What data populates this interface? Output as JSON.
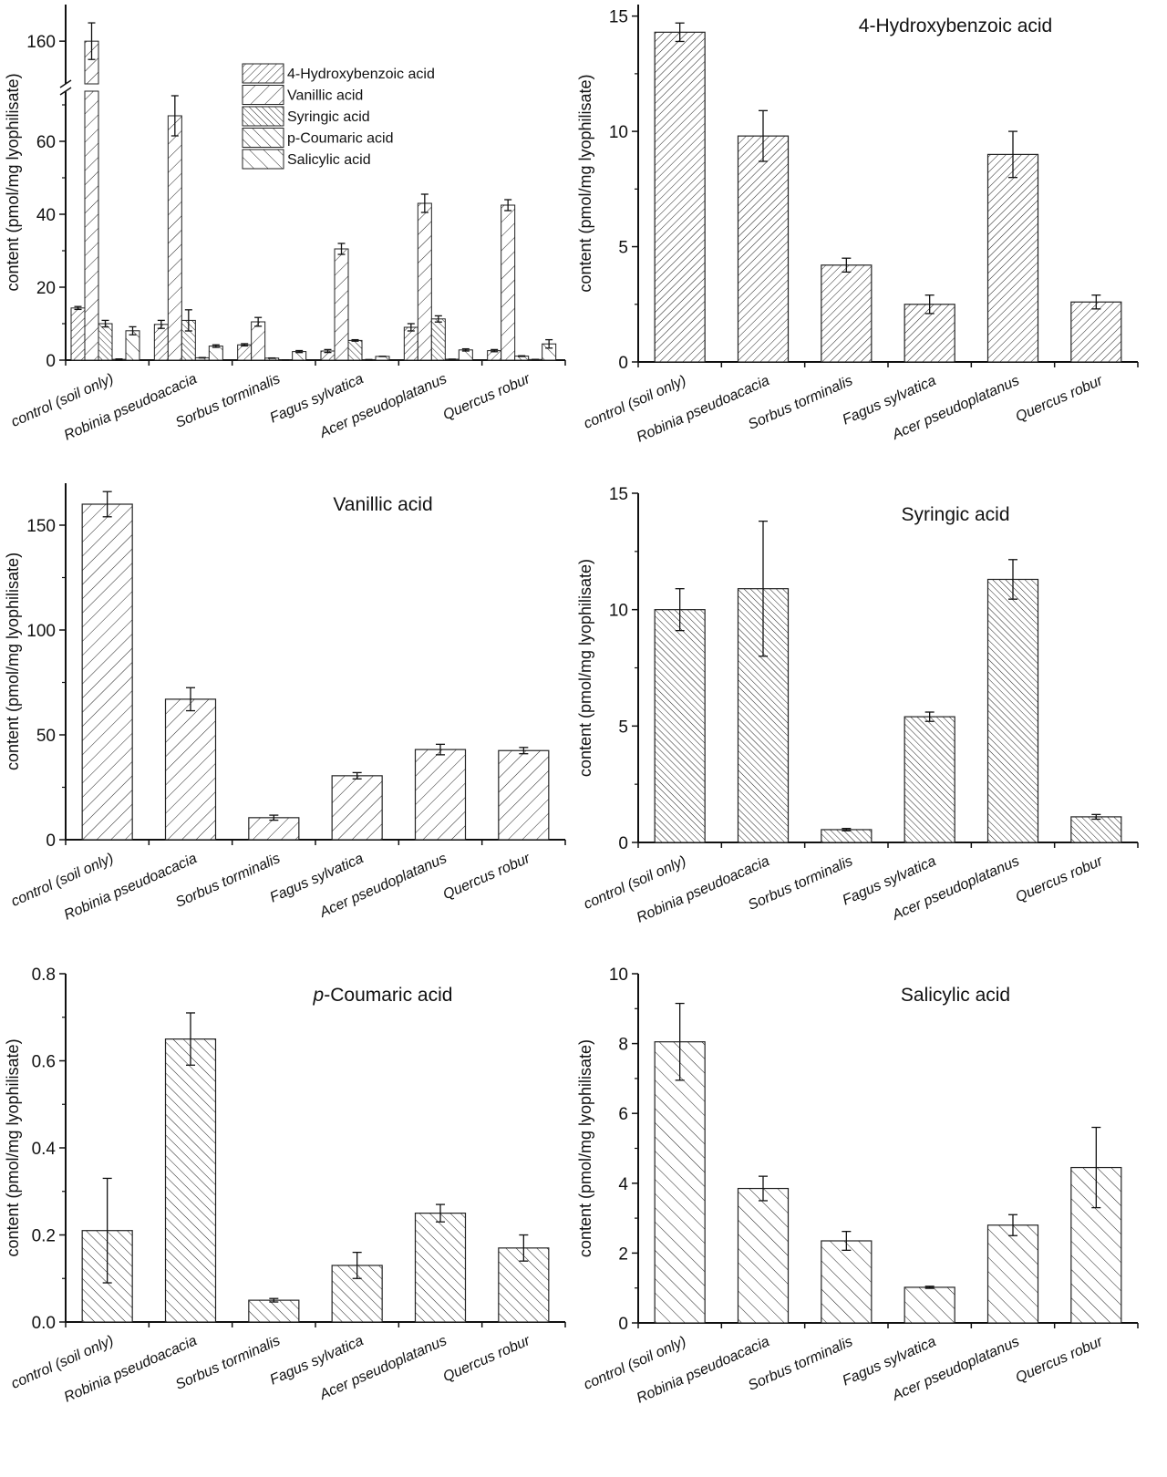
{
  "chart_data": [
    {
      "type": "bar",
      "title": "",
      "ylabel": "content (pmol/mg lyophilisate)",
      "categories": [
        "control (soil only)",
        "Robinia pseudoacacia",
        "Sorbus torminalis",
        "Fagus sylvatica",
        "Acer pseudoplatanus",
        "Quercus robur"
      ],
      "y_axis_break": true,
      "ylim_lower": [
        0,
        74
      ],
      "ylim_upper": [
        146,
        172
      ],
      "yticks": [
        "0",
        "20",
        "40",
        "60",
        "160"
      ],
      "legend_position": "top-center",
      "series": [
        {
          "name": "4-Hydroxybenzoic acid",
          "values": [
            14.3,
            9.8,
            4.2,
            2.5,
            9.0,
            2.6
          ],
          "errors": [
            0.4,
            1.1,
            0.3,
            0.4,
            1.0,
            0.3
          ]
        },
        {
          "name": "Vanillic acid",
          "values": [
            160,
            67,
            10.5,
            30.5,
            43,
            42.5
          ],
          "errors": [
            6,
            5.5,
            1.2,
            1.5,
            2.5,
            1.5
          ]
        },
        {
          "name": "Syringic acid",
          "values": [
            10,
            10.9,
            0.55,
            5.4,
            11.3,
            1.1
          ],
          "errors": [
            0.9,
            2.9,
            0.05,
            0.2,
            0.85,
            0.1
          ]
        },
        {
          "name": "p-Coumaric acid",
          "values": [
            0.21,
            0.65,
            0.05,
            0.13,
            0.25,
            0.17
          ],
          "errors": [
            0.12,
            0.06,
            0.004,
            0.03,
            0.02,
            0.03
          ]
        },
        {
          "name": "Salicylic acid",
          "values": [
            8.05,
            3.85,
            2.35,
            1.02,
            2.8,
            4.45
          ],
          "errors": [
            1.1,
            0.35,
            0.27,
            0.03,
            0.3,
            1.15
          ]
        }
      ]
    },
    {
      "type": "bar",
      "title": "4-Hydroxybenzoic acid",
      "ylabel": "content (pmol/mg lyophilisate)",
      "categories": [
        "control (soil only)",
        "Robinia pseudoacacia",
        "Sorbus torminalis",
        "Fagus sylvatica",
        "Acer pseudoplatanus",
        "Quercus robur"
      ],
      "ylim": [
        0,
        15.5
      ],
      "yticks": [
        "0",
        "5",
        "10",
        "15"
      ],
      "values": [
        14.3,
        9.8,
        4.2,
        2.5,
        9.0,
        2.6
      ],
      "errors": [
        0.4,
        1.1,
        0.3,
        0.4,
        1.0,
        0.3
      ]
    },
    {
      "type": "bar",
      "title": "Vanillic acid",
      "ylabel": "content (pmol/mg lyophilisate)",
      "categories": [
        "control (soil only)",
        "Robinia pseudoacacia",
        "Sorbus torminalis",
        "Fagus sylvatica",
        "Acer pseudoplatanus",
        "Quercus robur"
      ],
      "ylim": [
        0,
        170
      ],
      "yticks": [
        "0",
        "50",
        "100",
        "150"
      ],
      "values": [
        160,
        67,
        10.5,
        30.5,
        43,
        42.5
      ],
      "errors": [
        6,
        5.5,
        1.2,
        1.5,
        2.5,
        1.5
      ]
    },
    {
      "type": "bar",
      "title": "Syringic acid",
      "ylabel": "content (pmol/mg lyophilisate)",
      "categories": [
        "control (soil only)",
        "Robinia pseudoacacia",
        "Sorbus torminalis",
        "Fagus sylvatica",
        "Acer pseudoplatanus",
        "Quercus robur"
      ],
      "ylim": [
        0,
        15
      ],
      "yticks": [
        "0",
        "5",
        "10",
        "15"
      ],
      "values": [
        10,
        10.9,
        0.55,
        5.4,
        11.3,
        1.1
      ],
      "errors": [
        0.9,
        2.9,
        0.05,
        0.2,
        0.85,
        0.1
      ]
    },
    {
      "type": "bar",
      "title_prefix": "p",
      "title": "-Coumaric acid",
      "ylabel": "content (pmol/mg lyophilisate)",
      "categories": [
        "control (soil only)",
        "Robinia pseudoacacia",
        "Sorbus torminalis",
        "Fagus sylvatica",
        "Acer pseudoplatanus",
        "Quercus robur"
      ],
      "ylim": [
        0,
        0.8
      ],
      "yticks": [
        "0.0",
        "0.2",
        "0.4",
        "0.6",
        "0.8"
      ],
      "values": [
        0.21,
        0.65,
        0.05,
        0.13,
        0.25,
        0.17
      ],
      "errors": [
        0.12,
        0.06,
        0.004,
        0.03,
        0.02,
        0.03
      ]
    },
    {
      "type": "bar",
      "title": "Salicylic acid",
      "ylabel": "content (pmol/mg lyophilisate)",
      "categories": [
        "control (soil only)",
        "Robinia pseudoacacia",
        "Sorbus torminalis",
        "Fagus sylvatica",
        "Acer pseudoplatanus",
        "Quercus robur"
      ],
      "ylim": [
        0,
        10
      ],
      "yticks": [
        "0",
        "2",
        "4",
        "6",
        "8",
        "10"
      ],
      "values": [
        8.05,
        3.85,
        2.35,
        1.02,
        2.8,
        4.45
      ],
      "errors": [
        1.1,
        0.35,
        0.27,
        0.03,
        0.3,
        1.15
      ]
    }
  ]
}
